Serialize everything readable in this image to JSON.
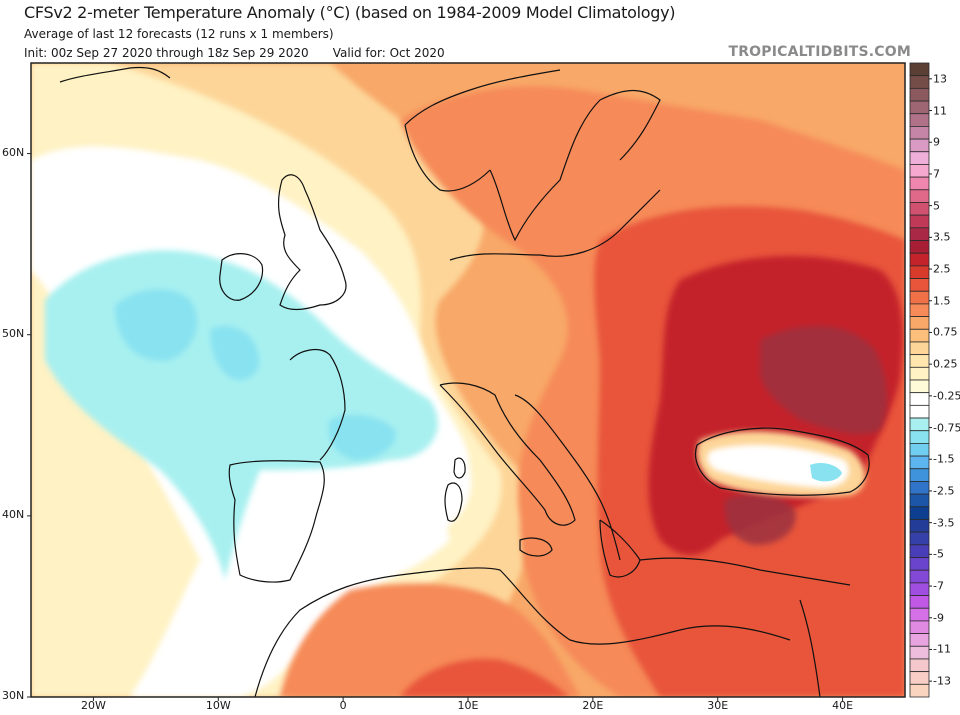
{
  "header": {
    "title": "CFSv2 2-meter Temperature Anomaly (°C) (based on 1984-2009 Model Climatology)",
    "subtitle": "Average of last 12 forecasts (12 runs x 1 members)",
    "init": "Init: 00z Sep 27 2020 through 18z Sep 29 2020",
    "valid": "Valid for: Oct 2020",
    "brand": "TROPICALTIDBITS.COM"
  },
  "map": {
    "extent": {
      "lon": [
        -25,
        45
      ],
      "lat": [
        30,
        65
      ]
    },
    "lat_ticks": [
      {
        "value": 60,
        "label": "60N"
      },
      {
        "value": 50,
        "label": "50N"
      },
      {
        "value": 40,
        "label": "40N"
      },
      {
        "value": 30,
        "label": "30N"
      }
    ],
    "lon_ticks": [
      {
        "value": -20,
        "label": "20W"
      },
      {
        "value": -10,
        "label": "10W"
      },
      {
        "value": 0,
        "label": "0"
      },
      {
        "value": 10,
        "label": "10E"
      },
      {
        "value": 20,
        "label": "20E"
      },
      {
        "value": 30,
        "label": "30E"
      },
      {
        "value": 40,
        "label": "40E"
      }
    ],
    "regions": [
      {
        "name": "western-atlantic-cool-anomaly",
        "anomaly": -0.5
      },
      {
        "name": "bay-of-biscay-cool-core",
        "anomaly": -1.0
      },
      {
        "name": "france-cool-anomaly",
        "anomaly": -0.5
      },
      {
        "name": "iberia-near-normal",
        "anomaly": 0.0
      },
      {
        "name": "scandinavia-warm",
        "anomaly": 1.5
      },
      {
        "name": "eastern-europe-warm",
        "anomaly": 2.5
      },
      {
        "name": "ukraine-russia-hot-core",
        "anomaly": 4.0
      },
      {
        "name": "black-sea-near-normal",
        "anomaly": 0.0
      },
      {
        "name": "turkey-hot-core",
        "anomaly": 3.5
      },
      {
        "name": "north-africa-warm",
        "anomaly": 1.5
      }
    ]
  },
  "colorbar": {
    "labels": [
      "13",
      "11",
      "9",
      "7",
      "5",
      "3.5",
      "2.5",
      "1.5",
      "0.75",
      "0.25",
      "-0.25",
      "-0.75",
      "-1.5",
      "-2.5",
      "-3.5",
      "-5",
      "-7",
      "-9",
      "-11",
      "-13"
    ],
    "colors": [
      "#5c3f34",
      "#744c48",
      "#8c5a5e",
      "#9e6572",
      "#b07288",
      "#c585a6",
      "#d99ac4",
      "#eeb0d8",
      "#f6a8cf",
      "#ee86ae",
      "#e06888",
      "#d05270",
      "#c03a58",
      "#a82846",
      "#a81e34",
      "#c4232c",
      "#d83a2c",
      "#e8553a",
      "#f07048",
      "#f68a58",
      "#f8a868",
      "#fcc07c",
      "#fdd598",
      "#fee6ae",
      "#fff2c4",
      "#fffad8",
      "#ffffff",
      "#ffffff",
      "#a8f0f0",
      "#88e2f0",
      "#70cff0",
      "#5cb5ee",
      "#3f92dc",
      "#2f74c8",
      "#1c56a8",
      "#0e3e90",
      "#223c98",
      "#3540a8",
      "#4a3eb8",
      "#6a44cc"
    ],
    "lower_colors": [
      "#8448d6",
      "#a04ee0",
      "#c05ae6",
      "#d670e6",
      "#e08ae2",
      "#e8a4e0",
      "#eebcdc",
      "#f4c8cc",
      "#f8cec6",
      "#fbd4c0"
    ]
  }
}
